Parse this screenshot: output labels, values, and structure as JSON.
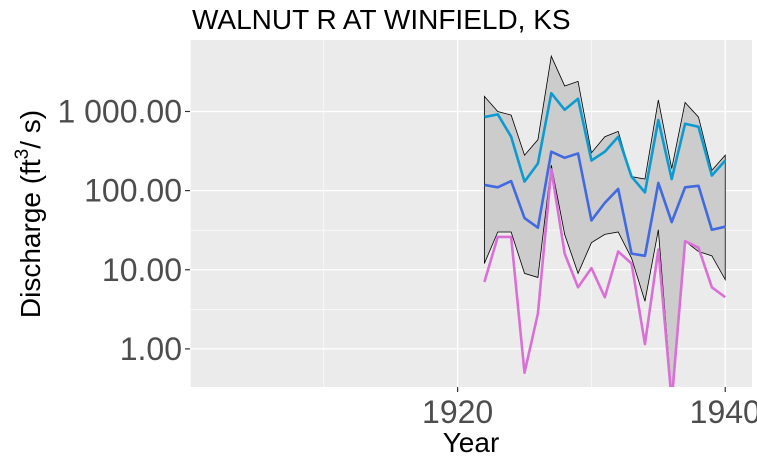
{
  "chart_data": {
    "type": "line",
    "title": "WALNUT R AT WINFIELD, KS",
    "xlabel": "Year",
    "ylabel": {
      "prefix": "Discharge (ft",
      "superscript": "3",
      "suffix": "/ s)"
    },
    "x_ticks": [
      {
        "value": 1920,
        "label": "1920"
      },
      {
        "value": 1940,
        "label": "1940"
      }
    ],
    "y_ticks": [
      {
        "value": 1,
        "label": "1.00"
      },
      {
        "value": 10,
        "label": "10.00"
      },
      {
        "value": 100,
        "label": "100.00"
      },
      {
        "value": 1000,
        "label": "1 000.00"
      }
    ],
    "y_scale": "log10",
    "xlim": [
      1900,
      1942
    ],
    "ylim": [
      0.33,
      8000
    ],
    "grid": true,
    "legend": "none",
    "x": [
      1922,
      1923,
      1924,
      1925,
      1926,
      1927,
      1928,
      1929,
      1930,
      1931,
      1932,
      1933,
      1934,
      1935,
      1936,
      1937,
      1938,
      1939,
      1940
    ],
    "band": {
      "fill": "#cccccc",
      "stroke": "#000000",
      "upper": [
        1550,
        1000,
        900,
        280,
        440,
        5000,
        2100,
        2400,
        300,
        480,
        560,
        150,
        140,
        1400,
        190,
        1300,
        850,
        180,
        280
      ],
      "lower": [
        12,
        30,
        30,
        9,
        8,
        210,
        28,
        9,
        22,
        28,
        30,
        14,
        4,
        32,
        0.25,
        23,
        17,
        15,
        7.5
      ]
    },
    "series": [
      {
        "color": "#0b9bd0",
        "values": [
          850,
          920,
          480,
          130,
          220,
          1700,
          1050,
          1450,
          240,
          310,
          480,
          150,
          95,
          780,
          140,
          700,
          640,
          155,
          240
        ]
      },
      {
        "color": "#4169e1",
        "values": [
          118,
          110,
          132,
          45,
          34,
          310,
          260,
          295,
          42,
          70,
          105,
          16,
          15,
          125,
          40,
          110,
          115,
          32,
          35
        ]
      },
      {
        "color": "#da70d6",
        "values": [
          7,
          26,
          26,
          0.5,
          2.8,
          185,
          16,
          6,
          10.5,
          4.5,
          17,
          12,
          1.15,
          18,
          0.22,
          23,
          19,
          6,
          4.5
        ]
      }
    ],
    "colors": {
      "panel_background": "#ebebeb",
      "grid": "#ffffff",
      "tick_text": "#4d4d4d"
    }
  }
}
